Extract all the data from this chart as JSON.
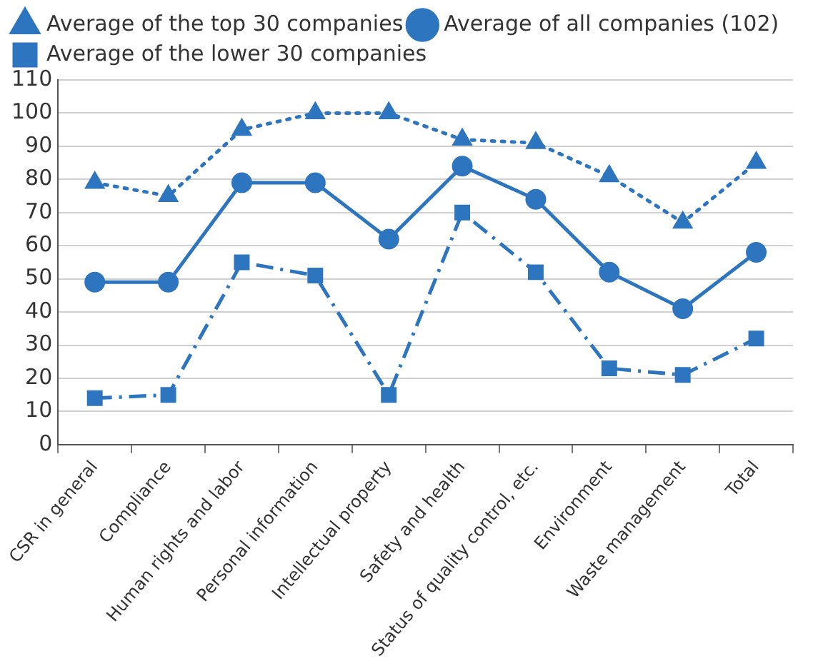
{
  "chart_data": {
    "type": "line",
    "categories": [
      "CSR in general",
      "Compliance",
      "Human rights and labor",
      "Personal information",
      "Intellectual property",
      "Safety and health",
      "Status of quality control, etc.",
      "Environment",
      "Waste management",
      "Total"
    ],
    "series": [
      {
        "name": "Average of the top 30 companies",
        "color": "#2e75c0",
        "marker": "triangle",
        "line_style": "dotted",
        "values": [
          79,
          75,
          95,
          100,
          100,
          92,
          91,
          81,
          67,
          85
        ]
      },
      {
        "name": "Average of all companies (102)",
        "color": "#2e75c0",
        "marker": "circle",
        "line_style": "solid",
        "values": [
          49,
          49,
          79,
          79,
          62,
          84,
          74,
          52,
          41,
          58
        ]
      },
      {
        "name": "Average of the lower 30 companies",
        "color": "#2e75c0",
        "marker": "square",
        "line_style": "dashdot",
        "values": [
          14,
          15,
          55,
          51,
          15,
          70,
          52,
          23,
          21,
          32
        ]
      }
    ],
    "ylim": [
      0,
      110
    ],
    "yticks": [
      0,
      10,
      20,
      30,
      40,
      50,
      60,
      70,
      80,
      90,
      100,
      110
    ],
    "grid": "y",
    "legend": "top left"
  }
}
